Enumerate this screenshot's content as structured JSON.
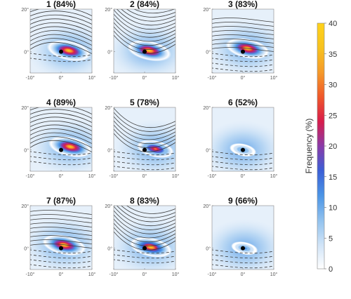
{
  "colors": {
    "colormap": [
      "#ffffff",
      "#cfe3f7",
      "#8fc0ee",
      "#4a94e6",
      "#3b5fd6",
      "#8a3aa8",
      "#d81c4b",
      "#f0582a",
      "#f59a2a",
      "#f7c21e",
      "#ffd21a"
    ],
    "contour_line": "#3a3a3a",
    "center_dot": "#000000"
  },
  "chart_data": {
    "type": "heatmap",
    "colorbar": {
      "label": "Frequency (%)",
      "ticks": [
        "0",
        "5",
        "10",
        "15",
        "20",
        "25",
        "30",
        "35",
        "40"
      ],
      "range": [
        0,
        40
      ]
    },
    "xlim": [
      -10,
      10
    ],
    "ylim": [
      -10,
      20
    ],
    "x_ticks": [
      "-10°",
      "0°",
      "10°"
    ],
    "y_ticks": [
      "0°",
      "20°"
    ],
    "panels": [
      {
        "title": "1 (84%)",
        "peak": 40,
        "hotspot": [
          2.5,
          0.5
        ],
        "solid_contours": 10,
        "dashed_contours": 2,
        "style": "ridge"
      },
      {
        "title": "2 (84%)",
        "peak": 40,
        "hotspot": [
          1.5,
          0.5
        ],
        "solid_contours": 12,
        "dashed_contours": 0,
        "style": "trough"
      },
      {
        "title": "3 (83%)",
        "peak": 40,
        "hotspot": [
          1.5,
          1.5
        ],
        "solid_contours": 8,
        "dashed_contours": 5,
        "style": "zonal"
      },
      {
        "title": "4 (89%)",
        "peak": 40,
        "hotspot": [
          3.0,
          1.5
        ],
        "solid_contours": 10,
        "dashed_contours": 3,
        "style": "ridge"
      },
      {
        "title": "5 (78%)",
        "peak": 30,
        "hotspot": [
          3.5,
          0.5
        ],
        "solid_contours": 7,
        "dashed_contours": 5,
        "style": "trough"
      },
      {
        "title": "6 (52%)",
        "peak": 15,
        "hotspot": [
          0.0,
          0.0
        ],
        "solid_contours": 0,
        "dashed_contours": 5,
        "style": "weak"
      },
      {
        "title": "7 (87%)",
        "peak": 40,
        "hotspot": [
          1.0,
          1.5
        ],
        "solid_contours": 9,
        "dashed_contours": 4,
        "style": "zonal"
      },
      {
        "title": "8 (83%)",
        "peak": 38,
        "hotspot": [
          2.0,
          0.5
        ],
        "solid_contours": 10,
        "dashed_contours": 3,
        "style": "trough"
      },
      {
        "title": "9 (66%)",
        "peak": 15,
        "hotspot": [
          0.5,
          0.0
        ],
        "solid_contours": 0,
        "dashed_contours": 5,
        "style": "weak"
      }
    ]
  }
}
